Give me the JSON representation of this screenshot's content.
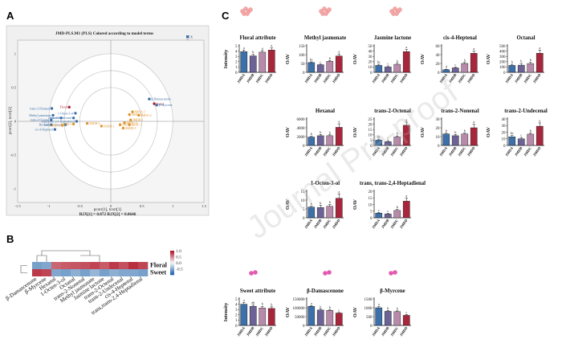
{
  "panels": {
    "a": "A",
    "b": "B",
    "c": "C"
  },
  "watermark": "Journal Pre-proof",
  "colors": {
    "JMDA": "#3d6fa8",
    "JMDB": "#6c6296",
    "JMDC": "#b88aaa",
    "JMDD": "#a8263c",
    "x_blue": "#3d6fa8",
    "y_red": "#a8263c",
    "tcorr_orange": "#e0952e",
    "heat_hi": "#b2182b",
    "heat_lo": "#2166ac"
  },
  "pls": {
    "title": "JMD-PLS.M1 (PLS) Colored according to model terms",
    "legend": [
      "X",
      "Y",
      "tcorr[2]"
    ],
    "xlabel": "pcorr[1], tcorr[1]",
    "ylabel": "pcorr[2], tcorr[2]",
    "footer": "R2X[1] = 0.872   R2X[2] = 0.0646",
    "x_ticks": [
      "-1.5",
      "-1",
      "-0.5",
      "0",
      "0.5",
      "1",
      "1.5"
    ],
    "y_ticks": [
      "1",
      "0.5",
      "0",
      "-0.5",
      "-1"
    ],
    "points": [
      {
        "label": "β-Damascenone",
        "x": 0.62,
        "y": 0.33,
        "group": "X"
      },
      {
        "label": "Sweet",
        "x": 0.7,
        "y": 0.26,
        "group": "Y"
      },
      {
        "label": "β-Myrcene",
        "x": 0.74,
        "y": 0.24,
        "group": "X"
      },
      {
        "label": "trans-2-Nonenal",
        "x": -0.95,
        "y": 0.19,
        "group": "X"
      },
      {
        "label": "Floral",
        "x": -0.67,
        "y": 0.21,
        "group": "Y"
      },
      {
        "label": "1-Octen-3-ol",
        "x": -0.57,
        "y": 0.12,
        "group": "X"
      },
      {
        "label": "Methyl jasmonate",
        "x": -0.93,
        "y": 0.09,
        "group": "X"
      },
      {
        "label": "trans-2-Undecenal",
        "x": -0.6,
        "y": 0.05,
        "group": "X"
      },
      {
        "label": "Octanal",
        "x": -0.8,
        "y": 0.05,
        "group": "X"
      },
      {
        "label": "trans-2-Octenal",
        "x": -0.96,
        "y": 0.02,
        "group": "X"
      },
      {
        "label": "trans,trans-2,4-Heptadienal",
        "x": -0.55,
        "y": 0.0,
        "group": "X"
      },
      {
        "label": "Hexanal",
        "x": -0.96,
        "y": -0.05,
        "group": "X"
      },
      {
        "label": "Jasmine lactone",
        "x": -0.73,
        "y": -0.05,
        "group": "X"
      },
      {
        "label": "cis-4-Heptenal",
        "x": -0.9,
        "y": -0.12,
        "group": "X"
      },
      {
        "label": "JMDA-1",
        "x": 0.35,
        "y": 0.14,
        "group": "tcorr"
      },
      {
        "label": "JMDA-2",
        "x": 0.45,
        "y": 0.09,
        "group": "tcorr"
      },
      {
        "label": "JMDA-3",
        "x": 0.3,
        "y": 0.1,
        "group": "tcorr"
      },
      {
        "label": "JMDB-1",
        "x": 0.32,
        "y": 0.02,
        "group": "tcorr"
      },
      {
        "label": "JMDB-2",
        "x": -0.6,
        "y": -0.04,
        "group": "tcorr"
      },
      {
        "label": "JMDB-3",
        "x": -0.38,
        "y": -0.03,
        "group": "tcorr"
      },
      {
        "label": "JMDC-1",
        "x": 0.3,
        "y": -0.05,
        "group": "tcorr"
      },
      {
        "label": "JMDC-2",
        "x": 0.15,
        "y": -0.05,
        "group": "tcorr"
      },
      {
        "label": "JMDC-3",
        "x": 0.22,
        "y": -0.02,
        "group": "tcorr"
      },
      {
        "label": "JMDD-1",
        "x": -0.15,
        "y": -0.07,
        "group": "tcorr"
      },
      {
        "label": "JMDD-2",
        "x": -0.78,
        "y": -0.06,
        "group": "tcorr"
      },
      {
        "label": "JMDD-3",
        "x": 0.2,
        "y": -0.1,
        "group": "tcorr"
      }
    ]
  },
  "heatmap": {
    "rows": [
      "Floral",
      "Sweet"
    ],
    "cols": [
      "β-Damascenone",
      "β-Myrcene",
      "Hexanal",
      "1-Octen-3-ol",
      "Octanal",
      "trans-2-Nonenal",
      "Methyl jasmonate",
      "Jasmine lactone",
      "trans-2-Octenal",
      "trans-2-Undecenal",
      "cis-4-Heptenal",
      "trans,trans-2,4-Heptadienal"
    ],
    "values": [
      [
        -0.6,
        -0.55,
        0.65,
        0.7,
        0.72,
        0.75,
        0.8,
        0.7,
        0.85,
        0.75,
        0.9,
        0.8
      ],
      [
        0.85,
        0.8,
        -0.55,
        -0.6,
        -0.5,
        -0.6,
        -0.45,
        -0.6,
        -0.5,
        -0.55,
        -0.55,
        -0.6
      ]
    ],
    "colorbar_ticks": [
      "1.0",
      "0.5",
      "0.0",
      "-0.5"
    ]
  },
  "chart_data": [
    {
      "type": "bar",
      "title": "Floral attribute",
      "ylabel": "Intensity",
      "categories": [
        "JMDA",
        "JMDB",
        "JMDC",
        "JMDD"
      ],
      "values": [
        3.9,
        3.1,
        3.8,
        4.2
      ],
      "errors": [
        0.3,
        0.3,
        0.3,
        0.4
      ],
      "letters": [
        "a",
        "b",
        "a",
        "a"
      ],
      "ylim": [
        0,
        5
      ],
      "ticks": [
        "0",
        "1",
        "2",
        "3",
        "4",
        "5"
      ]
    },
    {
      "type": "bar",
      "title": "Methyl jasmonate",
      "ylabel": "OAV",
      "categories": [
        "JMDA",
        "JMDB",
        "JMDC",
        "JMDD"
      ],
      "values": [
        55,
        43,
        62,
        92
      ],
      "errors": [
        4,
        3,
        5,
        12
      ],
      "letters": [
        "bc",
        "c",
        "b",
        "a"
      ],
      "ylim": [
        0,
        150
      ],
      "ticks": [
        "0",
        "50",
        "100",
        "150"
      ]
    },
    {
      "type": "bar",
      "title": "Jasmine lactone",
      "ylabel": "OAV",
      "categories": [
        "JMDA",
        "JMDB",
        "JMDC",
        "JMDD"
      ],
      "values": [
        13,
        10,
        15,
        39
      ],
      "errors": [
        2,
        2,
        2,
        4
      ],
      "letters": [
        "bc",
        "c",
        "b",
        "a"
      ],
      "ylim": [
        0,
        50
      ],
      "ticks": [
        "0",
        "10",
        "20",
        "30",
        "40",
        "50"
      ]
    },
    {
      "type": "bar",
      "title": "cis-4-Heptenal",
      "ylabel": "OAV",
      "categories": [
        "JMDA",
        "JMDB",
        "JMDC",
        "JMDD"
      ],
      "values": [
        6,
        10,
        20,
        43
      ],
      "errors": [
        1,
        2,
        2,
        5
      ],
      "letters": [
        "d",
        "c",
        "b",
        "a"
      ],
      "ylim": [
        0,
        60
      ],
      "ticks": [
        "0",
        "20",
        "40",
        "60"
      ]
    },
    {
      "type": "bar",
      "title": "Octanal",
      "ylabel": "OAV",
      "categories": [
        "JMDA",
        "JMDB",
        "JMDC",
        "JMDD"
      ],
      "values": [
        130,
        135,
        165,
        360
      ],
      "errors": [
        20,
        30,
        25,
        60
      ],
      "letters": [
        "b",
        "b",
        "b",
        "a"
      ],
      "ylim": [
        0,
        500
      ],
      "ticks": [
        "0",
        "100",
        "200",
        "300",
        "400",
        "500"
      ]
    },
    {
      "type": "bar",
      "title": "Hexanal",
      "ylabel": "OAV",
      "categories": [
        "JMDA",
        "JMDB",
        "JMDC",
        "JMDD"
      ],
      "values": [
        1900,
        2200,
        2200,
        4100
      ],
      "errors": [
        150,
        300,
        200,
        800
      ],
      "letters": [
        "b",
        "b",
        "b",
        "a"
      ],
      "ylim": [
        0,
        6000
      ],
      "ticks": [
        "0",
        "2000",
        "4000",
        "6000"
      ]
    },
    {
      "type": "bar",
      "title": "trans-2-Octenal",
      "ylabel": "OAV",
      "categories": [
        "JMDA",
        "JMDB",
        "JMDC",
        "JMDD"
      ],
      "values": [
        5,
        3.5,
        8,
        19
      ],
      "errors": [
        1,
        1,
        1,
        3
      ],
      "letters": [
        "bc",
        "c",
        "b",
        "a"
      ],
      "ylim": [
        0,
        25
      ],
      "ticks": [
        "0",
        "5",
        "10",
        "15",
        "20",
        "25"
      ]
    },
    {
      "type": "bar",
      "title": "trans-2-Nonenal",
      "ylabel": "OAV",
      "categories": [
        "JMDA",
        "JMDB",
        "JMDC",
        "JMDD"
      ],
      "values": [
        13,
        11,
        13,
        20
      ],
      "errors": [
        1,
        1.5,
        1,
        4
      ],
      "letters": [
        "b",
        "b",
        "b",
        "a"
      ],
      "ylim": [
        0,
        30
      ],
      "ticks": [
        "0",
        "10",
        "20",
        "30"
      ]
    },
    {
      "type": "bar",
      "title": "trans-2-Undecenal",
      "ylabel": "OAV",
      "categories": [
        "JMDA",
        "JMDB",
        "JMDC",
        "JMDD"
      ],
      "values": [
        13,
        10,
        17,
        29
      ],
      "errors": [
        2,
        2,
        2,
        5
      ],
      "letters": [
        "bc",
        "c",
        "b",
        "a"
      ],
      "ylim": [
        0,
        40
      ],
      "ticks": [
        "0",
        "10",
        "20",
        "30",
        "40"
      ]
    },
    {
      "type": "bar",
      "title": "1-Octen-3-ol",
      "ylabel": "OAV",
      "categories": [
        "JMDA",
        "JMDB",
        "JMDC",
        "JMDD"
      ],
      "values": [
        6,
        5.8,
        6.5,
        11
      ],
      "errors": [
        0.5,
        1.3,
        1,
        2.5
      ],
      "letters": [
        "b",
        "b",
        "b",
        "a"
      ],
      "ylim": [
        0,
        15
      ],
      "ticks": [
        "0",
        "5",
        "10",
        "15"
      ]
    },
    {
      "type": "bar",
      "title": "trans, trans-2,4-Heptadienal",
      "ylabel": "OAV",
      "categories": [
        "JMDA",
        "JMDB",
        "JMDC",
        "JMDD"
      ],
      "values": [
        3.5,
        2.8,
        5.5,
        12.5
      ],
      "errors": [
        0.5,
        0.5,
        0.8,
        2.5
      ],
      "letters": [
        "c",
        "c",
        "b",
        "a"
      ],
      "ylim": [
        0,
        20
      ],
      "ticks": [
        "0",
        "5",
        "10",
        "15",
        "20"
      ]
    },
    {
      "type": "bar",
      "title": "Sweet attribute",
      "ylabel": "Intensity",
      "categories": [
        "JMDA",
        "JMDB",
        "JMDC",
        "JMDD"
      ],
      "values": [
        4.0,
        3.6,
        3.3,
        3.2
      ],
      "errors": [
        0.3,
        0.3,
        0.3,
        0.3
      ],
      "letters": [
        "a",
        "ab",
        "b",
        "b"
      ],
      "ylim": [
        0,
        5
      ],
      "ticks": [
        "0",
        "1",
        "2",
        "3",
        "4",
        "5"
      ]
    },
    {
      "type": "bar",
      "title": "β-Damascenone",
      "ylabel": "OAV",
      "categories": [
        "JMDA",
        "JMDB",
        "JMDC",
        "JMDD"
      ],
      "values": [
        108000,
        87000,
        85000,
        70000
      ],
      "errors": [
        4000,
        5000,
        4000,
        3000
      ],
      "letters": [
        "a",
        "b",
        "b",
        "c"
      ],
      "ylim": [
        0,
        150000
      ],
      "ticks": [
        "0",
        "50000",
        "100000",
        "150000"
      ]
    },
    {
      "type": "bar",
      "title": "β-Myrcene",
      "ylabel": "OAV",
      "categories": [
        "JMDA",
        "JMDB",
        "JMDC",
        "JMDD"
      ],
      "values": [
        1000,
        800,
        780,
        570
      ],
      "errors": [
        60,
        50,
        40,
        50
      ],
      "letters": [
        "a",
        "b",
        "b",
        "c"
      ],
      "ylim": [
        0,
        1500
      ],
      "ticks": [
        "0",
        "500",
        "1000",
        "1500"
      ]
    }
  ]
}
